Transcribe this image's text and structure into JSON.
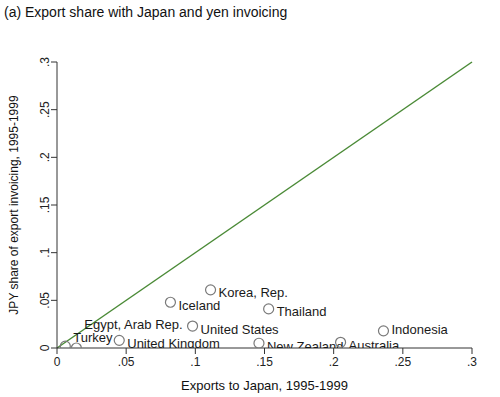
{
  "chart_data": {
    "type": "scatter",
    "title": "(a) Export share with Japan and yen invoicing",
    "x_label": "Exports to Japan, 1995-1999",
    "y_label": "JPY share of export invoicing, 1995-1999",
    "points": [
      {
        "name": "Korea, Rep.",
        "x": 0.111,
        "y": 0.061
      },
      {
        "name": "Iceland",
        "x": 0.082,
        "y": 0.048
      },
      {
        "name": "Thailand",
        "x": 0.153,
        "y": 0.041
      },
      {
        "name": "United States",
        "x": 0.098,
        "y": 0.023
      },
      {
        "name": "Indonesia",
        "x": 0.236,
        "y": 0.018
      },
      {
        "name": "New Zealand",
        "x": 0.146,
        "y": 0.005
      },
      {
        "name": "Australia",
        "x": 0.205,
        "y": 0.006
      },
      {
        "name": "United Kingdom",
        "x": 0.045,
        "y": 0.008
      },
      {
        "name": "Turkey",
        "x": 0.006,
        "y": 0.002
      },
      {
        "name": "Egypt, Arab Rep.",
        "x": 0.014,
        "y": 0.0
      }
    ],
    "color": "#7a7a7a",
    "marker": "hollow_circle",
    "line": {
      "x": [
        0,
        0.3
      ],
      "y": [
        0,
        0.3
      ],
      "color": "#4a8a36"
    },
    "xlim": [
      0,
      0.3
    ],
    "ylim": [
      0,
      0.3
    ],
    "xticks": [
      0,
      {
        "value": 0.05,
        "label": ".05"
      },
      {
        "value": 0.1,
        "label": ".1"
      },
      {
        "value": 0.15,
        "label": ".15"
      },
      {
        "value": 0.2,
        "label": ".2"
      },
      {
        "value": 0.25,
        "label": ".25"
      },
      {
        "value": 0.3,
        "label": ".3"
      }
    ],
    "yticks": [
      0,
      {
        "value": 0.05,
        "label": ".05"
      },
      {
        "value": 0.1,
        "label": ".1"
      },
      {
        "value": 0.15,
        "label": ".15"
      },
      {
        "value": 0.2,
        "label": ".2"
      },
      {
        "value": 0.25,
        "label": ".25"
      },
      {
        "value": 0.3,
        "label": ".3"
      }
    ],
    "grid": false
  }
}
